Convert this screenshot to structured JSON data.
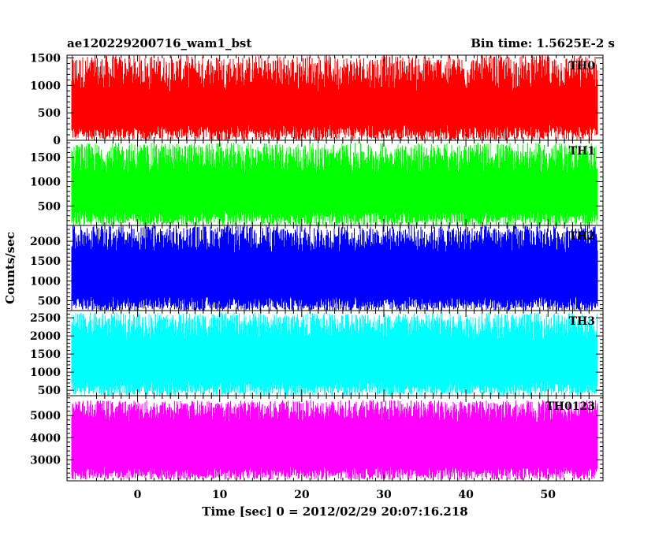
{
  "chart_data": {
    "type": "line",
    "title_left": "ae120229200716_wam1_bst",
    "title_right": "Bin time: 1.5625E-2 s",
    "xlabel": "Time [sec] 0 = 2012/02/29 20:07:16.218",
    "ylabel": "Counts/sec",
    "xlim": [
      -8.6,
      56.7
    ],
    "data_x_range": [
      -8,
      56
    ],
    "x_ticks": [
      0,
      10,
      20,
      30,
      40,
      50
    ],
    "panels": [
      {
        "name": "TH0",
        "color": "#ff0000",
        "ylim": [
          0,
          1550
        ],
        "y_ticks": [
          0,
          500,
          1000,
          1500
        ],
        "low_min": 0,
        "low_max": 280,
        "high_min": 880,
        "high_max": 1550
      },
      {
        "name": "TH1",
        "color": "#00ff00",
        "ylim": [
          100,
          1850
        ],
        "y_ticks": [
          500,
          1000,
          1500
        ],
        "low_min": 100,
        "low_max": 400,
        "high_min": 1150,
        "high_max": 1800
      },
      {
        "name": "TH2",
        "color": "#0000ff",
        "ylim": [
          250,
          2400
        ],
        "y_ticks": [
          500,
          1000,
          1500,
          2000
        ],
        "low_min": 250,
        "low_max": 600,
        "high_min": 1700,
        "high_max": 2400
      },
      {
        "name": "TH3",
        "color": "#00ffff",
        "ylim": [
          350,
          2700
        ],
        "y_ticks": [
          500,
          1000,
          1500,
          2000,
          2500
        ],
        "low_min": 350,
        "low_max": 750,
        "high_min": 1900,
        "high_max": 2650
      },
      {
        "name": "TH0123",
        "color": "#ff00ff",
        "ylim": [
          2050,
          5900
        ],
        "y_ticks": [
          3000,
          4000,
          5000
        ],
        "low_min": 2100,
        "low_max": 2700,
        "high_min": 4700,
        "high_max": 5700
      }
    ]
  }
}
